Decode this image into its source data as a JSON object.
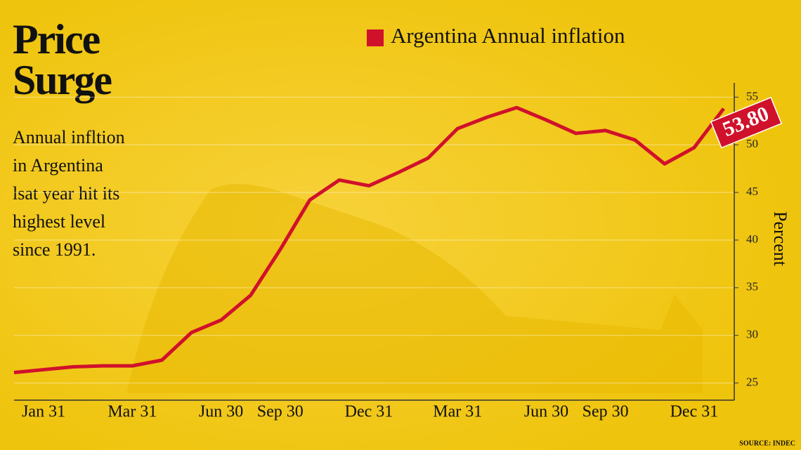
{
  "chart_data": {
    "type": "line",
    "title": [
      "Price",
      "Surge"
    ],
    "subtitle": [
      "Annual infltion",
      "in Argentina",
      "lsat year hit its",
      "highest level",
      "since 1991."
    ],
    "y_label": "Percent",
    "source": "SOURCE: INDEC",
    "categories": [
      null,
      "Jan 31",
      null,
      null,
      "Mar 31",
      null,
      null,
      "Jun 30",
      null,
      "Sep 30",
      null,
      null,
      "Dec 31",
      null,
      null,
      "Mar 31",
      null,
      null,
      "Jun 30",
      null,
      "Sep 30",
      null,
      null,
      "Dec 31",
      null
    ],
    "series": [
      {
        "name": "Argentina Annual inflation",
        "color": "#d0112b",
        "values": [
          26.1,
          26.4,
          26.7,
          26.8,
          26.8,
          27.4,
          30.3,
          31.6,
          34.2,
          39.0,
          44.2,
          46.3,
          45.7,
          47.1,
          48.6,
          51.7,
          52.9,
          53.9,
          52.6,
          51.2,
          51.5,
          50.5,
          48.0,
          49.7,
          53.8
        ],
        "value_labels": [
          null,
          null,
          null,
          null,
          null,
          null,
          null,
          null,
          null,
          null,
          null,
          null,
          null,
          null,
          null,
          null,
          null,
          null,
          null,
          null,
          null,
          null,
          null,
          null,
          "53.80"
        ]
      }
    ],
    "ylim": [
      23.2,
      56.5
    ],
    "yticks": [
      25,
      30,
      35,
      40,
      45,
      50,
      55
    ],
    "grid": true
  }
}
